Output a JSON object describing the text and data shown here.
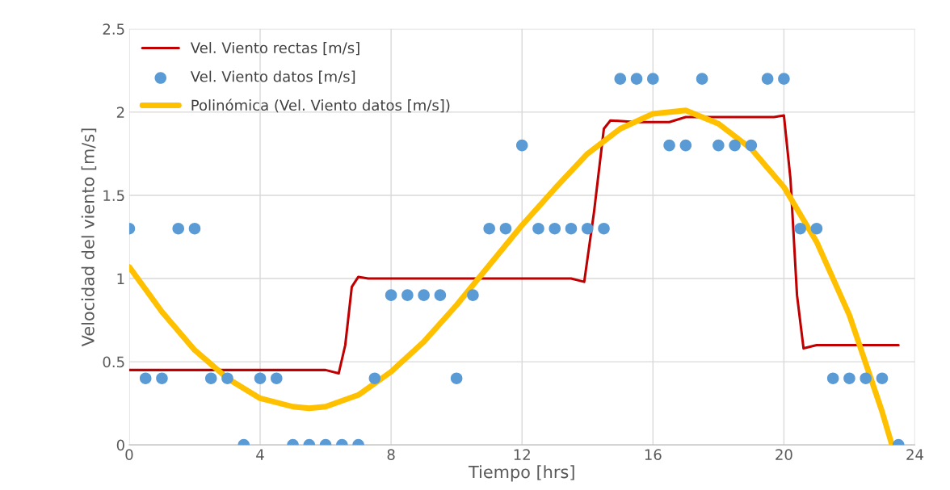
{
  "chart_data": {
    "type": "line",
    "xlabel": "Tiempo [hrs]",
    "ylabel": "Velocidad del viento [m/s]",
    "xlim": [
      0,
      24
    ],
    "xticks": [
      0,
      4,
      8,
      12,
      16,
      20,
      24
    ],
    "ylim": [
      0,
      2.5
    ],
    "yticks": [
      0,
      0.5,
      1,
      1.5,
      2,
      2.5
    ],
    "grid": true,
    "legend": "top left",
    "series": [
      {
        "name": "Vel. Viento rectas [m/s]",
        "color": "#c00000",
        "marker": "none",
        "x": [
          0,
          6.0,
          6.4,
          6.6,
          6.8,
          7,
          7.3,
          13.5,
          13.9,
          14.2,
          14.5,
          14.7,
          15.5,
          16.5,
          17,
          19.7,
          20,
          20.2,
          20.4,
          20.6,
          21,
          23.5
        ],
        "values": [
          0.45,
          0.45,
          0.43,
          0.6,
          0.95,
          1.01,
          1.0,
          1.0,
          0.98,
          1.4,
          1.9,
          1.95,
          1.94,
          1.94,
          1.97,
          1.97,
          1.98,
          1.6,
          0.9,
          0.58,
          0.6,
          0.6
        ]
      },
      {
        "name": "Vel. Viento datos [m/s]",
        "type": "scatter",
        "color": "#5b9bd5",
        "marker": "circle",
        "x": [
          0,
          0.5,
          1,
          1.5,
          2,
          2.5,
          3,
          3.5,
          4,
          4.5,
          5,
          5.5,
          6,
          6.5,
          7,
          7.5,
          8,
          8.5,
          9,
          9.5,
          10,
          10.5,
          11,
          11.5,
          12,
          12.5,
          13,
          13.5,
          14,
          14.5,
          15,
          15.5,
          16,
          16.5,
          17,
          17.5,
          18,
          18.5,
          19,
          19.5,
          20,
          20.5,
          21,
          21.5,
          22,
          22.5,
          23,
          23.5
        ],
        "values": [
          1.3,
          0.4,
          0.4,
          1.3,
          1.3,
          0.4,
          0.4,
          0,
          0.4,
          0.4,
          0,
          0,
          0,
          0,
          0,
          0.4,
          0.9,
          0.9,
          0.9,
          0.9,
          0.4,
          0.9,
          1.3,
          1.3,
          1.8,
          1.3,
          1.3,
          1.3,
          1.3,
          1.3,
          2.2,
          2.2,
          2.2,
          1.8,
          1.8,
          2.2,
          1.8,
          1.8,
          1.8,
          2.2,
          2.2,
          1.3,
          1.3,
          0.4,
          0.4,
          0.4,
          0.4,
          0
        ]
      },
      {
        "name": "Polinómica (Vel. Viento datos [m/s])",
        "color": "#ffc000",
        "marker": "none",
        "x": [
          0,
          1,
          2,
          3,
          4,
          5,
          5.5,
          6,
          7,
          8,
          9,
          10,
          11,
          12,
          13,
          14,
          15,
          16,
          17,
          18,
          19,
          20,
          21,
          22,
          23,
          23.3
        ],
        "values": [
          1.07,
          0.8,
          0.57,
          0.4,
          0.28,
          0.23,
          0.22,
          0.23,
          0.3,
          0.44,
          0.62,
          0.84,
          1.08,
          1.32,
          1.54,
          1.75,
          1.9,
          1.99,
          2.01,
          1.93,
          1.78,
          1.55,
          1.22,
          0.78,
          0.2,
          0
        ]
      }
    ]
  }
}
